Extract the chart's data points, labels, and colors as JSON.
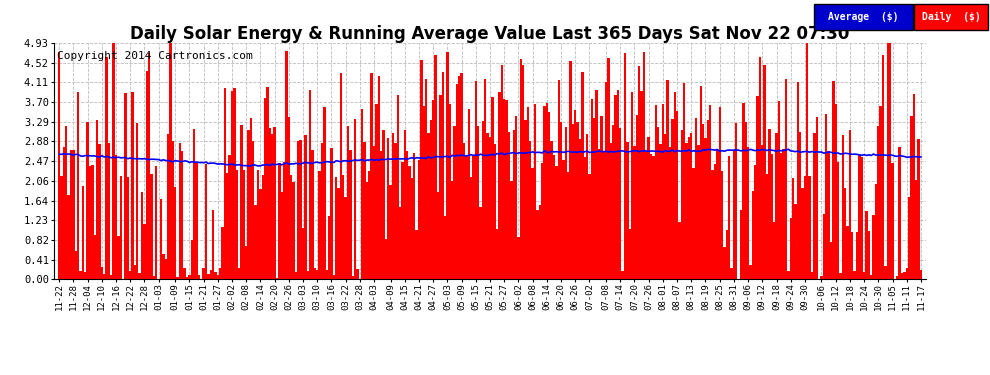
{
  "title": "Daily Solar Energy & Running Average Value Last 365 Days Sat Nov 22 07:30",
  "copyright": "Copyright 2014 Cartronics.com",
  "bar_color": "#ff0000",
  "avg_line_color": "#0000ff",
  "bg_color": "#ffffff",
  "grid_color": "#bbbbbb",
  "ylim": [
    0.0,
    4.93
  ],
  "yticks": [
    0.0,
    0.41,
    0.82,
    1.23,
    1.64,
    2.06,
    2.47,
    2.88,
    3.29,
    3.7,
    4.11,
    4.52,
    4.93
  ],
  "legend_avg_color": "#0000cc",
  "legend_daily_color": "#ff0000",
  "legend_text_color": "#ffffff",
  "title_fontsize": 12,
  "copyright_fontsize": 8,
  "n_bars": 365,
  "x_tick_labels": [
    "11-22",
    "11-28",
    "12-04",
    "12-10",
    "12-16",
    "12-22",
    "12-28",
    "01-03",
    "01-09",
    "01-15",
    "01-21",
    "01-27",
    "02-02",
    "02-08",
    "02-14",
    "02-20",
    "02-26",
    "03-03",
    "03-10",
    "03-16",
    "03-22",
    "03-28",
    "04-03",
    "04-09",
    "04-15",
    "04-21",
    "04-27",
    "05-03",
    "05-09",
    "05-15",
    "05-21",
    "05-27",
    "06-02",
    "06-08",
    "06-14",
    "06-20",
    "06-26",
    "07-02",
    "07-08",
    "07-14",
    "07-20",
    "07-26",
    "08-01",
    "08-07",
    "08-13",
    "08-19",
    "08-25",
    "08-31",
    "09-06",
    "09-12",
    "09-18",
    "09-24",
    "09-30",
    "10-06",
    "10-12",
    "10-18",
    "10-24",
    "10-30",
    "11-05",
    "11-11",
    "11-17"
  ],
  "seed": 7
}
